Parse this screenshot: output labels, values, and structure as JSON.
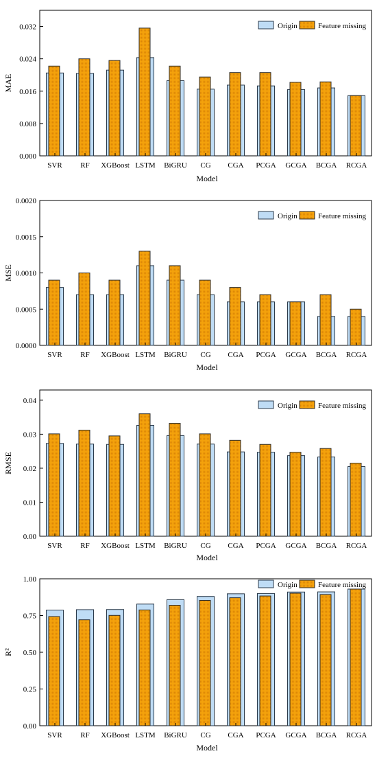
{
  "legend": {
    "origin_label": "Origin",
    "missing_label": "Feature missing"
  },
  "colors": {
    "origin": "#bfdcf5",
    "missing": "#f4a20c",
    "axis": "#000000"
  },
  "chart_data": [
    {
      "type": "bar",
      "id": "mae",
      "ylabel": "MAE",
      "xlabel": "Model",
      "categories": [
        "SVR",
        "RF",
        "XGBoost",
        "LSTM",
        "BiGRU",
        "CG",
        "CGA",
        "PCGA",
        "GCGA",
        "BCGA",
        "RCGA"
      ],
      "ylim": [
        0,
        0.036
      ],
      "yticks": [
        "0.000",
        "0.008",
        "0.016",
        "0.024",
        "0.032"
      ],
      "legend_position": "top-right",
      "series": [
        {
          "name": "Origin",
          "values": [
            0.0205,
            0.0204,
            0.0212,
            0.0243,
            0.0186,
            0.0165,
            0.0175,
            0.0173,
            0.0164,
            0.0168,
            0.0149
          ]
        },
        {
          "name": "Feature missing",
          "values": [
            0.0222,
            0.024,
            0.0236,
            0.0316,
            0.0222,
            0.0195,
            0.0206,
            0.0206,
            0.0182,
            0.0183,
            0.0149
          ]
        }
      ]
    },
    {
      "type": "bar",
      "id": "mse",
      "ylabel": "MSE",
      "xlabel": "Model",
      "categories": [
        "SVR",
        "RF",
        "XGBoost",
        "LSTM",
        "BiGRU",
        "CG",
        "CGA",
        "PCGA",
        "GCGA",
        "BCGA",
        "RCGA"
      ],
      "ylim": [
        0,
        0.002
      ],
      "yticks": [
        "0.0000",
        "0.0005",
        "0.0010",
        "0.0015",
        "0.0020"
      ],
      "legend_position": "top-right",
      "series": [
        {
          "name": "Origin",
          "values": [
            0.0008,
            0.0007,
            0.0007,
            0.0011,
            0.0009,
            0.0007,
            0.0006,
            0.0006,
            0.0006,
            0.0004,
            0.0004
          ]
        },
        {
          "name": "Feature missing",
          "values": [
            0.0009,
            0.001,
            0.0009,
            0.0013,
            0.0011,
            0.0009,
            0.0008,
            0.0007,
            0.0006,
            0.0007,
            0.0005
          ]
        }
      ]
    },
    {
      "type": "bar",
      "id": "rmse",
      "ylabel": "RMSE",
      "xlabel": "Model",
      "categories": [
        "SVR",
        "RF",
        "XGBoost",
        "LSTM",
        "BiGRU",
        "CG",
        "CGA",
        "PCGA",
        "GCGA",
        "BCGA",
        "RCGA"
      ],
      "ylim": [
        0,
        0.043
      ],
      "yticks": [
        "0.00",
        "0.01",
        "0.02",
        "0.03",
        "0.04"
      ],
      "legend_position": "top-right",
      "series": [
        {
          "name": "Origin",
          "values": [
            0.0273,
            0.0271,
            0.027,
            0.0326,
            0.0296,
            0.0271,
            0.0248,
            0.0247,
            0.0237,
            0.0233,
            0.0205
          ]
        },
        {
          "name": "Feature missing",
          "values": [
            0.0301,
            0.0312,
            0.0295,
            0.036,
            0.0332,
            0.0301,
            0.0282,
            0.027,
            0.0247,
            0.0258,
            0.0215
          ]
        }
      ]
    },
    {
      "type": "bar",
      "id": "r2",
      "ylabel": "R²",
      "xlabel": "Model",
      "categories": [
        "SVR",
        "RF",
        "XGBoost",
        "LSTM",
        "BiGRU",
        "CG",
        "CGA",
        "PCGA",
        "GCGA",
        "BCGA",
        "RCGA"
      ],
      "ylim": [
        0,
        1.0
      ],
      "yticks": [
        "0.00",
        "0.25",
        "0.50",
        "0.75",
        "1.00"
      ],
      "legend_position": "top-right",
      "series": [
        {
          "name": "Origin",
          "values": [
            0.787,
            0.79,
            0.791,
            0.828,
            0.858,
            0.88,
            0.898,
            0.9,
            0.91,
            0.911,
            0.93
          ]
        },
        {
          "name": "Feature missing",
          "values": [
            0.743,
            0.721,
            0.751,
            0.788,
            0.82,
            0.853,
            0.871,
            0.883,
            0.902,
            0.893,
            0.93
          ]
        }
      ]
    }
  ]
}
